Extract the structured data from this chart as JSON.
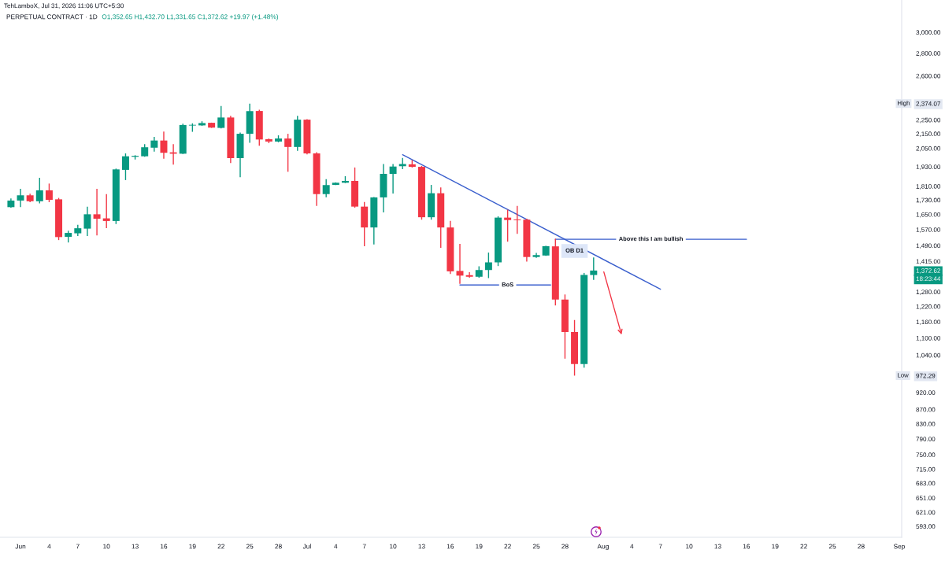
{
  "chart_data": {
    "type": "candlestick",
    "title": "PERPETUAL CONTRACT · 1D",
    "subtitle": "O1,352.65 H1,432.70 L1,331.65 C1,372.62 +19.97 (+1.48%)",
    "log": "y",
    "x": [
      "2026-05-31",
      "2026-06-01",
      "2026-06-02",
      "2026-06-03",
      "2026-06-04",
      "2026-06-05",
      "2026-06-06",
      "2026-06-07",
      "2026-06-08",
      "2026-06-09",
      "2026-06-10",
      "2026-06-11",
      "2026-06-12",
      "2026-06-13",
      "2026-06-14",
      "2026-06-15",
      "2026-06-16",
      "2026-06-17",
      "2026-06-18",
      "2026-06-19",
      "2026-06-20",
      "2026-06-21",
      "2026-06-22",
      "2026-06-23",
      "2026-06-24",
      "2026-06-25",
      "2026-06-26",
      "2026-06-27",
      "2026-06-28",
      "2026-06-29",
      "2026-06-30",
      "2026-07-01",
      "2026-07-02",
      "2026-07-03",
      "2026-07-04",
      "2026-07-05",
      "2026-07-06",
      "2026-07-07",
      "2026-07-08",
      "2026-07-09",
      "2026-07-10",
      "2026-07-11",
      "2026-07-12",
      "2026-07-13",
      "2026-07-14",
      "2026-07-15",
      "2026-07-16",
      "2026-07-17",
      "2026-07-18",
      "2026-07-19",
      "2026-07-20",
      "2026-07-21",
      "2026-07-22",
      "2026-07-23",
      "2026-07-24",
      "2026-07-25",
      "2026-07-26",
      "2026-07-27",
      "2026-07-28",
      "2026-07-29",
      "2026-07-30",
      "2026-07-31"
    ],
    "ohlc": [
      [
        1690,
        1739,
        1687,
        1727
      ],
      [
        1727,
        1795,
        1690,
        1757
      ],
      [
        1757,
        1766,
        1718,
        1723
      ],
      [
        1723,
        1861,
        1711,
        1786
      ],
      [
        1786,
        1826,
        1718,
        1731
      ],
      [
        1734,
        1742,
        1517,
        1532
      ],
      [
        1533,
        1564,
        1505,
        1553
      ],
      [
        1551,
        1595,
        1537,
        1577
      ],
      [
        1575,
        1693,
        1537,
        1651
      ],
      [
        1651,
        1795,
        1540,
        1627
      ],
      [
        1629,
        1764,
        1578,
        1615
      ],
      [
        1615,
        1918,
        1599,
        1913
      ],
      [
        1910,
        2016,
        1847,
        1997
      ],
      [
        1994,
        2004,
        1976,
        2000
      ],
      [
        1997,
        2078,
        1994,
        2057
      ],
      [
        2054,
        2128,
        2028,
        2103
      ],
      [
        2103,
        2165,
        1981,
        2020
      ],
      [
        2023,
        2078,
        1943,
        2014
      ],
      [
        2014,
        2222,
        2012,
        2213
      ],
      [
        2209,
        2225,
        2164,
        2214
      ],
      [
        2210,
        2240,
        2207,
        2227
      ],
      [
        2229,
        2230,
        2192,
        2194
      ],
      [
        2192,
        2355,
        2188,
        2268
      ],
      [
        2268,
        2280,
        1953,
        1985
      ],
      [
        1985,
        2159,
        1864,
        2150
      ],
      [
        2150,
        2374.07,
        2087,
        2316
      ],
      [
        2317,
        2327,
        2068,
        2110
      ],
      [
        2112,
        2117,
        2085,
        2096
      ],
      [
        2096,
        2139,
        2091,
        2117
      ],
      [
        2117,
        2150,
        1898,
        2059
      ],
      [
        2059,
        2280,
        2033,
        2252
      ],
      [
        2252,
        2255,
        2009,
        2016
      ],
      [
        2016,
        2024,
        1697,
        1764
      ],
      [
        1764,
        1853,
        1746,
        1817
      ],
      [
        1818,
        1833,
        1817,
        1831
      ],
      [
        1831,
        1871,
        1829,
        1842
      ],
      [
        1842,
        1925,
        1687,
        1693
      ],
      [
        1693,
        1719,
        1487,
        1581
      ],
      [
        1581,
        1747,
        1495,
        1745
      ],
      [
        1745,
        1947,
        1661,
        1885
      ],
      [
        1885,
        1947,
        1767,
        1931
      ],
      [
        1933,
        1986,
        1914,
        1947
      ],
      [
        1945,
        1972,
        1925,
        1929
      ],
      [
        1929,
        1935,
        1622,
        1635
      ],
      [
        1635,
        1818,
        1622,
        1769
      ],
      [
        1769,
        1803,
        1479,
        1581
      ],
      [
        1581,
        1616,
        1357,
        1369
      ],
      [
        1371,
        1498,
        1314,
        1350
      ],
      [
        1352,
        1365,
        1341,
        1345
      ],
      [
        1345,
        1392,
        1341,
        1375
      ],
      [
        1375,
        1456,
        1339,
        1410
      ],
      [
        1410,
        1640,
        1393,
        1633
      ],
      [
        1633,
        1676,
        1509,
        1620
      ],
      [
        1623,
        1697,
        1548,
        1619
      ],
      [
        1622,
        1627,
        1414,
        1435
      ],
      [
        1435,
        1454,
        1431,
        1444
      ],
      [
        1442,
        1489,
        1440,
        1487
      ],
      [
        1486,
        1524,
        1224,
        1248
      ],
      [
        1248,
        1269,
        1028,
        1122
      ],
      [
        1122,
        1167,
        972.29,
        1010
      ],
      [
        1010,
        1362,
        998,
        1352.65
      ],
      [
        1352.65,
        1432.7,
        1331.65,
        1372.62
      ]
    ],
    "colors": [
      "#089981",
      "#089981",
      "#f23645",
      "#089981",
      "#f23645",
      "#f23645",
      "#089981",
      "#089981",
      "#089981",
      "#f23645",
      "#f23645",
      "#089981",
      "#089981",
      "#089981",
      "#089981",
      "#089981",
      "#f23645",
      "#f23645",
      "#089981",
      "#089981",
      "#089981",
      "#f23645",
      "#089981",
      "#f23645",
      "#089981",
      "#089981",
      "#f23645",
      "#f23645",
      "#089981",
      "#f23645",
      "#089981",
      "#f23645",
      "#f23645",
      "#089981",
      "#089981",
      "#089981",
      "#f23645",
      "#f23645",
      "#089981",
      "#089981",
      "#089981",
      "#089981",
      "#f23645",
      "#f23645",
      "#089981",
      "#f23645",
      "#f23645",
      "#f23645",
      "#f23645",
      "#089981",
      "#089981",
      "#089981",
      "#f23645",
      "#f23645",
      "#f23645",
      "#089981",
      "#089981",
      "#f23645",
      "#f23645",
      "#f23645",
      "#089981",
      "#089981"
    ],
    "series": [
      {
        "type": "line",
        "x": [
          "2026-07-11",
          "2026-08-07"
        ],
        "values": [
          2007,
          1291
        ],
        "color": "#3a5fcd"
      },
      {
        "type": "line",
        "x": [
          "2026-07-27",
          "2026-08-16"
        ],
        "values": [
          1521,
          1521
        ],
        "color": "#3a5fcd"
      },
      {
        "type": "line",
        "x": [
          "2026-07-17",
          "2026-07-26T12:00"
        ],
        "values": [
          1309,
          1309
        ],
        "color": "#3a5fcd"
      }
    ],
    "annotations": [
      "TehLamboX, Jul 31, 2026 11:06 UTC+5:30",
      {
        "text": "OB D1",
        "x": "2026-07-29",
        "y": 1464
      },
      {
        "text": "Above this I am bullish",
        "x": "2026-08-06",
        "y": 1521
      },
      {
        "text": "BoS",
        "x": "2026-07-22",
        "y": 1309
      },
      {
        "text": "High",
        "y": 2374.07
      },
      {
        "text": "Low",
        "y": 972.29
      },
      "18:23:44"
    ],
    "xlim": [
      "2026-05-29T20:30",
      "2026-09-01T06:00"
    ],
    "ylim": [
      572,
      3335
    ],
    "xticks": [
      {
        "value": "2026-06-01",
        "label": "Jun"
      },
      {
        "value": "2026-06-04",
        "label": "4"
      },
      {
        "value": "2026-06-07",
        "label": "7"
      },
      {
        "value": "2026-06-10",
        "label": "10"
      },
      {
        "value": "2026-06-13",
        "label": "13"
      },
      {
        "value": "2026-06-16",
        "label": "16"
      },
      {
        "value": "2026-06-19",
        "label": "19"
      },
      {
        "value": "2026-06-22",
        "label": "22"
      },
      {
        "value": "2026-06-25",
        "label": "25"
      },
      {
        "value": "2026-06-28",
        "label": "28"
      },
      {
        "value": "2026-07-01",
        "label": "Jul"
      },
      {
        "value": "2026-07-04",
        "label": "4"
      },
      {
        "value": "2026-07-07",
        "label": "7"
      },
      {
        "value": "2026-07-10",
        "label": "10"
      },
      {
        "value": "2026-07-13",
        "label": "13"
      },
      {
        "value": "2026-07-16",
        "label": "16"
      },
      {
        "value": "2026-07-19",
        "label": "19"
      },
      {
        "value": "2026-07-22",
        "label": "22"
      },
      {
        "value": "2026-07-25",
        "label": "25"
      },
      {
        "value": "2026-07-28",
        "label": "28"
      },
      {
        "value": "2026-08-01",
        "label": "Aug"
      },
      {
        "value": "2026-08-04",
        "label": "4"
      },
      {
        "value": "2026-08-07",
        "label": "7"
      },
      {
        "value": "2026-08-10",
        "label": "10"
      },
      {
        "value": "2026-08-13",
        "label": "13"
      },
      {
        "value": "2026-08-16",
        "label": "16"
      },
      {
        "value": "2026-08-19",
        "label": "19"
      },
      {
        "value": "2026-08-22",
        "label": "22"
      },
      {
        "value": "2026-08-25",
        "label": "25"
      },
      {
        "value": "2026-08-28",
        "label": "28"
      },
      {
        "value": "2026-09-01",
        "label": "Sep"
      }
    ],
    "yticks": [
      {
        "value": 593,
        "label": "593.00"
      },
      {
        "value": 621,
        "label": "621.00"
      },
      {
        "value": 651,
        "label": "651.00"
      },
      {
        "value": 683,
        "label": "683.00"
      },
      {
        "value": 715,
        "label": "715.00"
      },
      {
        "value": 750,
        "label": "750.00"
      },
      {
        "value": 790,
        "label": "790.00"
      },
      {
        "value": 830,
        "label": "830.00"
      },
      {
        "value": 870,
        "label": "870.00"
      },
      {
        "value": 920,
        "label": "920.00"
      },
      {
        "value": 972.29,
        "label": "972.29"
      },
      {
        "value": 1040,
        "label": "1,040.00"
      },
      {
        "value": 1100,
        "label": "1,100.00"
      },
      {
        "value": 1160,
        "label": "1,160.00"
      },
      {
        "value": 1220,
        "label": "1,220.00"
      },
      {
        "value": 1280,
        "label": "1,280.00"
      },
      {
        "value": 1372.62,
        "label": "1,372.62"
      },
      {
        "value": 1415,
        "label": "1,415.00"
      },
      {
        "value": 1490,
        "label": "1,490.00"
      },
      {
        "value": 1570,
        "label": "1,570.00"
      },
      {
        "value": 1650,
        "label": "1,650.00"
      },
      {
        "value": 1730,
        "label": "1,730.00"
      },
      {
        "value": 1810,
        "label": "1,810.00"
      },
      {
        "value": 1930,
        "label": "1,930.00"
      },
      {
        "value": 2050,
        "label": "2,050.00"
      },
      {
        "value": 2150,
        "label": "2,150.00"
      },
      {
        "value": 2250,
        "label": "2,250.00"
      },
      {
        "value": 2374.07,
        "label": "2,374.07"
      },
      {
        "value": 2600,
        "label": "2,600.00"
      },
      {
        "value": 2800,
        "label": "2,800.00"
      },
      {
        "value": 3000,
        "label": "3,000.00"
      }
    ]
  }
}
